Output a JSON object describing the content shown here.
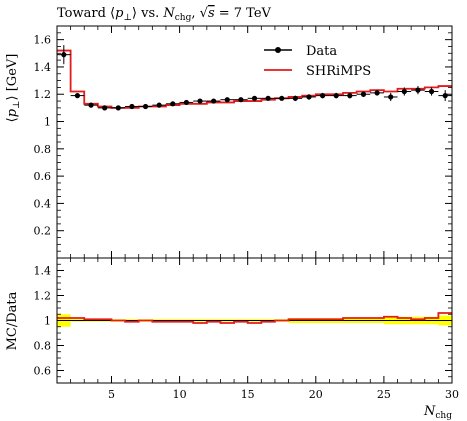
{
  "chart_data": [
    {
      "type": "line",
      "title_parts": {
        "prefix": "Toward ⟨",
        "p": "p",
        "perp": "⊥",
        "mid": "⟩ vs. ",
        "N": "N",
        "chg": "chg",
        "sep": ", √",
        "s": "s",
        "suffix": " = 7 TeV"
      },
      "ylabel": "⟨p⊥⟩ [GeV]",
      "ylabel_parts": {
        "open": "⟨",
        "p": "p",
        "perp": "⊥",
        "close": "⟩ [GeV]"
      },
      "xlim": [
        1,
        30
      ],
      "ylim": [
        0,
        1.7
      ],
      "yticks": [
        "0.2",
        "0.4",
        "0.6",
        "0.8",
        "1",
        "1.2",
        "1.4",
        "1.6"
      ],
      "ytick_values": [
        0.2,
        0.4,
        0.6,
        0.8,
        1.0,
        1.2,
        1.4,
        1.6
      ],
      "legend_position": "top-right",
      "series": [
        {
          "name": "Data",
          "color": "#000000",
          "style": "points-with-errors",
          "x": [
            1.5,
            2.5,
            3.5,
            4.5,
            5.5,
            6.5,
            7.5,
            8.5,
            9.5,
            10.5,
            11.5,
            12.5,
            13.5,
            14.5,
            15.5,
            16.5,
            17.5,
            18.5,
            19.5,
            20.5,
            21.5,
            22.5,
            23.5,
            24.5,
            25.5,
            26.5,
            27.5,
            28.5,
            29.5
          ],
          "y": [
            1.49,
            1.19,
            1.12,
            1.1,
            1.1,
            1.11,
            1.11,
            1.12,
            1.13,
            1.14,
            1.15,
            1.15,
            1.16,
            1.16,
            1.17,
            1.17,
            1.17,
            1.17,
            1.18,
            1.19,
            1.19,
            1.19,
            1.2,
            1.21,
            1.18,
            1.22,
            1.23,
            1.22,
            1.19
          ],
          "yerr": [
            0.07,
            0.01,
            0.01,
            0.01,
            0.01,
            0.01,
            0.01,
            0.01,
            0.01,
            0.01,
            0.01,
            0.01,
            0.01,
            0.01,
            0.01,
            0.01,
            0.01,
            0.02,
            0.02,
            0.02,
            0.02,
            0.02,
            0.02,
            0.02,
            0.03,
            0.03,
            0.03,
            0.03,
            0.04
          ]
        },
        {
          "name": "SHRiMPS",
          "color": "#e41a1c",
          "style": "histogram",
          "edges": [
            1,
            2,
            3,
            4,
            5,
            6,
            7,
            8,
            9,
            10,
            11,
            12,
            13,
            14,
            15,
            16,
            17,
            18,
            19,
            20,
            21,
            22,
            23,
            24,
            25,
            26,
            27,
            28,
            29,
            30
          ],
          "values": [
            1.52,
            1.22,
            1.13,
            1.11,
            1.1,
            1.1,
            1.11,
            1.11,
            1.12,
            1.13,
            1.13,
            1.14,
            1.14,
            1.15,
            1.15,
            1.16,
            1.17,
            1.18,
            1.19,
            1.2,
            1.2,
            1.21,
            1.22,
            1.23,
            1.22,
            1.24,
            1.24,
            1.25,
            1.26
          ]
        }
      ]
    },
    {
      "type": "line",
      "ylabel": "MC/Data",
      "xlabel_parts": {
        "N": "N",
        "chg": "chg"
      },
      "xlim": [
        1,
        30
      ],
      "ylim": [
        0.5,
        1.5
      ],
      "xticks": [
        "5",
        "10",
        "15",
        "20",
        "25",
        "30"
      ],
      "xtick_values": [
        5,
        10,
        15,
        20,
        25,
        30
      ],
      "yticks": [
        "0.6",
        "0.8",
        "1",
        "1.2",
        "1.4"
      ],
      "ytick_values": [
        0.6,
        0.8,
        1.0,
        1.2,
        1.4
      ],
      "band_color": "#ffff00",
      "band": {
        "edges": [
          1,
          2,
          3,
          4,
          5,
          6,
          7,
          8,
          9,
          10,
          11,
          12,
          13,
          14,
          15,
          16,
          17,
          18,
          19,
          20,
          21,
          22,
          23,
          24,
          25,
          26,
          27,
          28,
          29,
          30
        ],
        "lower": [
          0.95,
          0.99,
          0.99,
          0.99,
          0.99,
          0.99,
          0.99,
          0.99,
          0.99,
          0.99,
          0.99,
          0.99,
          0.99,
          0.99,
          0.99,
          0.99,
          0.99,
          0.98,
          0.98,
          0.98,
          0.98,
          0.98,
          0.98,
          0.98,
          0.97,
          0.97,
          0.97,
          0.97,
          0.96
        ],
        "upper": [
          1.05,
          1.01,
          1.01,
          1.01,
          1.01,
          1.01,
          1.01,
          1.01,
          1.01,
          1.01,
          1.01,
          1.01,
          1.01,
          1.01,
          1.01,
          1.01,
          1.01,
          1.02,
          1.02,
          1.02,
          1.02,
          1.02,
          1.02,
          1.02,
          1.03,
          1.03,
          1.03,
          1.03,
          1.04
        ]
      },
      "ratio": {
        "color": "#e41a1c",
        "edges": [
          1,
          2,
          3,
          4,
          5,
          6,
          7,
          8,
          9,
          10,
          11,
          12,
          13,
          14,
          15,
          16,
          17,
          18,
          19,
          20,
          21,
          22,
          23,
          24,
          25,
          26,
          27,
          28,
          29,
          30
        ],
        "values": [
          1.02,
          1.02,
          1.01,
          1.01,
          1.0,
          0.99,
          1.0,
          0.99,
          0.99,
          0.99,
          0.98,
          0.99,
          0.98,
          0.99,
          0.98,
          0.99,
          1.0,
          1.01,
          1.01,
          1.01,
          1.01,
          1.02,
          1.02,
          1.02,
          1.03,
          1.02,
          1.01,
          1.02,
          1.06
        ]
      }
    }
  ]
}
